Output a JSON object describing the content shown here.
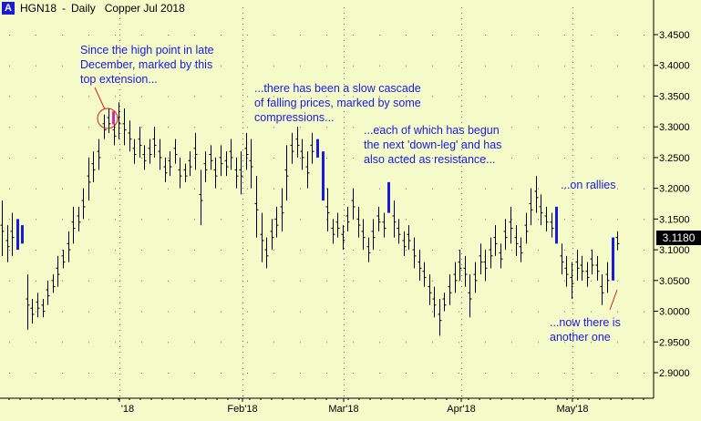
{
  "title": {
    "badge": "A",
    "symbol": "HGN18",
    "period": "Daily",
    "name": "Copper Jul 2018"
  },
  "last_price": "3.1180",
  "colors": {
    "background": "#f4fbc8",
    "bars": "#000000",
    "highlight": "#1a1adf",
    "top_bar": "#e020c0",
    "circle": "#d02020",
    "arrow": "#d02020",
    "annotation_text": "#1a1adf"
  },
  "annotations": [
    "Since the high point in late\nDecember, marked by this\ntop extension...",
    "...there has been a slow cascade\nof falling prices, marked by some\ncompressions...",
    "...each of which has begun\nthe next 'down-leg' and has\nalso acted as resistance...",
    "...on rallies",
    "...now there is\nanother one"
  ],
  "chart_data": {
    "type": "ohlc",
    "y_axis": {
      "range": [
        2.86,
        3.53
      ],
      "ticks": [
        "2.9000",
        "2.9500",
        "3.0000",
        "3.0500",
        "3.1000",
        "3.1500",
        "3.2000",
        "3.2500",
        "3.3000",
        "3.3500",
        "3.4000",
        "3.4500"
      ],
      "side": "right"
    },
    "x_axis": {
      "labels": [
        "'18",
        "Feb'18",
        "Mar'18",
        "Apr'18",
        "May'18"
      ]
    },
    "grid": "dotted",
    "bars": [
      {
        "hi": 3.18,
        "lo": 3.09,
        "hl": false
      },
      {
        "hi": 3.14,
        "lo": 3.08,
        "hl": false
      },
      {
        "hi": 3.16,
        "lo": 3.09,
        "hl": false
      },
      {
        "hi": 3.15,
        "lo": 3.1,
        "hl": true
      },
      {
        "hi": 3.14,
        "lo": 3.11,
        "hl": true
      },
      {
        "hi": 3.06,
        "lo": 2.97,
        "hl": false
      },
      {
        "hi": 3.02,
        "lo": 2.98,
        "hl": false
      },
      {
        "hi": 3.03,
        "lo": 2.99,
        "hl": false
      },
      {
        "hi": 3.02,
        "lo": 2.99,
        "hl": false
      },
      {
        "hi": 3.05,
        "lo": 3.01,
        "hl": false
      },
      {
        "hi": 3.06,
        "lo": 3.03,
        "hl": false
      },
      {
        "hi": 3.09,
        "lo": 3.04,
        "hl": false
      },
      {
        "hi": 3.1,
        "lo": 3.07,
        "hl": false
      },
      {
        "hi": 3.13,
        "lo": 3.08,
        "hl": false
      },
      {
        "hi": 3.17,
        "lo": 3.11,
        "hl": false
      },
      {
        "hi": 3.17,
        "lo": 3.13,
        "hl": false
      },
      {
        "hi": 3.2,
        "lo": 3.15,
        "hl": false
      },
      {
        "hi": 3.25,
        "lo": 3.18,
        "hl": false
      },
      {
        "hi": 3.26,
        "lo": 3.21,
        "hl": false
      },
      {
        "hi": 3.28,
        "lo": 3.23,
        "hl": false
      },
      {
        "hi": 3.32,
        "lo": 3.28,
        "hl": false
      },
      {
        "hi": 3.33,
        "lo": 3.29,
        "hl": false
      },
      {
        "hi": 3.31,
        "lo": 3.27,
        "hl": false
      },
      {
        "hi": 3.34,
        "lo": 3.28,
        "hl": false
      },
      {
        "hi": 3.33,
        "lo": 3.27,
        "hl": false
      },
      {
        "hi": 3.31,
        "lo": 3.26,
        "hl": false
      },
      {
        "hi": 3.28,
        "lo": 3.24,
        "hl": false
      },
      {
        "hi": 3.3,
        "lo": 3.25,
        "hl": false
      },
      {
        "hi": 3.27,
        "lo": 3.23,
        "hl": false
      },
      {
        "hi": 3.28,
        "lo": 3.24,
        "hl": false
      },
      {
        "hi": 3.3,
        "lo": 3.25,
        "hl": false
      },
      {
        "hi": 3.28,
        "lo": 3.23,
        "hl": false
      },
      {
        "hi": 3.25,
        "lo": 3.21,
        "hl": false
      },
      {
        "hi": 3.26,
        "lo": 3.22,
        "hl": false
      },
      {
        "hi": 3.28,
        "lo": 3.24,
        "hl": false
      },
      {
        "hi": 3.25,
        "lo": 3.2,
        "hl": false
      },
      {
        "hi": 3.24,
        "lo": 3.21,
        "hl": false
      },
      {
        "hi": 3.26,
        "lo": 3.22,
        "hl": false
      },
      {
        "hi": 3.29,
        "lo": 3.23,
        "hl": false
      },
      {
        "hi": 3.23,
        "lo": 3.14,
        "hl": false
      },
      {
        "hi": 3.26,
        "lo": 3.21,
        "hl": false
      },
      {
        "hi": 3.27,
        "lo": 3.23,
        "hl": false
      },
      {
        "hi": 3.25,
        "lo": 3.2,
        "hl": false
      },
      {
        "hi": 3.27,
        "lo": 3.22,
        "hl": false
      },
      {
        "hi": 3.26,
        "lo": 3.22,
        "hl": false
      },
      {
        "hi": 3.28,
        "lo": 3.23,
        "hl": false
      },
      {
        "hi": 3.25,
        "lo": 3.2,
        "hl": false
      },
      {
        "hi": 3.26,
        "lo": 3.19,
        "hl": false
      },
      {
        "hi": 3.29,
        "lo": 3.23,
        "hl": false
      },
      {
        "hi": 3.28,
        "lo": 3.2,
        "hl": false
      },
      {
        "hi": 3.22,
        "lo": 3.12,
        "hl": false
      },
      {
        "hi": 3.16,
        "lo": 3.08,
        "hl": false
      },
      {
        "hi": 3.12,
        "lo": 3.07,
        "hl": false
      },
      {
        "hi": 3.15,
        "lo": 3.1,
        "hl": false
      },
      {
        "hi": 3.17,
        "lo": 3.12,
        "hl": false
      },
      {
        "hi": 3.2,
        "lo": 3.13,
        "hl": false
      },
      {
        "hi": 3.27,
        "lo": 3.18,
        "hl": false
      },
      {
        "hi": 3.29,
        "lo": 3.24,
        "hl": false
      },
      {
        "hi": 3.3,
        "lo": 3.25,
        "hl": false
      },
      {
        "hi": 3.28,
        "lo": 3.23,
        "hl": false
      },
      {
        "hi": 3.26,
        "lo": 3.2,
        "hl": false
      },
      {
        "hi": 3.29,
        "lo": 3.24,
        "hl": false
      },
      {
        "hi": 3.28,
        "lo": 3.25,
        "hl": true
      },
      {
        "hi": 3.26,
        "lo": 3.18,
        "hl": true
      },
      {
        "hi": 3.2,
        "lo": 3.13,
        "hl": false
      },
      {
        "hi": 3.15,
        "lo": 3.11,
        "hl": false
      },
      {
        "hi": 3.16,
        "lo": 3.12,
        "hl": false
      },
      {
        "hi": 3.14,
        "lo": 3.1,
        "hl": false
      },
      {
        "hi": 3.17,
        "lo": 3.13,
        "hl": false
      },
      {
        "hi": 3.2,
        "lo": 3.15,
        "hl": false
      },
      {
        "hi": 3.17,
        "lo": 3.12,
        "hl": false
      },
      {
        "hi": 3.15,
        "lo": 3.1,
        "hl": false
      },
      {
        "hi": 3.12,
        "lo": 3.08,
        "hl": false
      },
      {
        "hi": 3.15,
        "lo": 3.1,
        "hl": false
      },
      {
        "hi": 3.17,
        "lo": 3.13,
        "hl": false
      },
      {
        "hi": 3.16,
        "lo": 3.12,
        "hl": false
      },
      {
        "hi": 3.21,
        "lo": 3.16,
        "hl": true
      },
      {
        "hi": 3.18,
        "lo": 3.12,
        "hl": false
      },
      {
        "hi": 3.15,
        "lo": 3.11,
        "hl": false
      },
      {
        "hi": 3.13,
        "lo": 3.09,
        "hl": false
      },
      {
        "hi": 3.14,
        "lo": 3.1,
        "hl": false
      },
      {
        "hi": 3.12,
        "lo": 3.07,
        "hl": false
      },
      {
        "hi": 3.1,
        "lo": 3.05,
        "hl": false
      },
      {
        "hi": 3.08,
        "lo": 3.04,
        "hl": false
      },
      {
        "hi": 3.06,
        "lo": 3.01,
        "hl": false
      },
      {
        "hi": 3.04,
        "lo": 2.99,
        "hl": false
      },
      {
        "hi": 3.02,
        "lo": 2.96,
        "hl": false
      },
      {
        "hi": 3.03,
        "lo": 3.0,
        "hl": false
      },
      {
        "hi": 3.06,
        "lo": 3.01,
        "hl": false
      },
      {
        "hi": 3.08,
        "lo": 3.03,
        "hl": false
      },
      {
        "hi": 3.1,
        "lo": 3.05,
        "hl": false
      },
      {
        "hi": 3.09,
        "lo": 3.04,
        "hl": false
      },
      {
        "hi": 3.06,
        "lo": 2.99,
        "hl": false
      },
      {
        "hi": 3.08,
        "lo": 3.03,
        "hl": false
      },
      {
        "hi": 3.11,
        "lo": 3.06,
        "hl": false
      },
      {
        "hi": 3.1,
        "lo": 3.05,
        "hl": false
      },
      {
        "hi": 3.12,
        "lo": 3.07,
        "hl": false
      },
      {
        "hi": 3.14,
        "lo": 3.09,
        "hl": false
      },
      {
        "hi": 3.11,
        "lo": 3.07,
        "hl": false
      },
      {
        "hi": 3.15,
        "lo": 3.1,
        "hl": false
      },
      {
        "hi": 3.17,
        "lo": 3.11,
        "hl": false
      },
      {
        "hi": 3.14,
        "lo": 3.09,
        "hl": false
      },
      {
        "hi": 3.12,
        "lo": 3.08,
        "hl": false
      },
      {
        "hi": 3.16,
        "lo": 3.11,
        "hl": false
      },
      {
        "hi": 3.2,
        "lo": 3.14,
        "hl": false
      },
      {
        "hi": 3.22,
        "lo": 3.16,
        "hl": false
      },
      {
        "hi": 3.19,
        "lo": 3.14,
        "hl": false
      },
      {
        "hi": 3.17,
        "lo": 3.13,
        "hl": false
      },
      {
        "hi": 3.16,
        "lo": 3.12,
        "hl": false
      },
      {
        "hi": 3.17,
        "lo": 3.11,
        "hl": true
      },
      {
        "hi": 3.11,
        "lo": 3.06,
        "hl": false
      },
      {
        "hi": 3.09,
        "lo": 3.04,
        "hl": false
      },
      {
        "hi": 3.08,
        "lo": 3.02,
        "hl": false
      },
      {
        "hi": 3.1,
        "lo": 3.05,
        "hl": false
      },
      {
        "hi": 3.09,
        "lo": 3.05,
        "hl": false
      },
      {
        "hi": 3.08,
        "lo": 3.04,
        "hl": false
      },
      {
        "hi": 3.1,
        "lo": 3.06,
        "hl": false
      },
      {
        "hi": 3.09,
        "lo": 3.05,
        "hl": false
      },
      {
        "hi": 3.06,
        "lo": 3.01,
        "hl": false
      },
      {
        "hi": 3.08,
        "lo": 3.03,
        "hl": false
      },
      {
        "hi": 3.12,
        "lo": 3.05,
        "hl": true
      },
      {
        "hi": 3.13,
        "lo": 3.1,
        "hl": false
      }
    ],
    "top_extension": {
      "bar_index": 22,
      "hi": 3.325,
      "lo": 3.31
    }
  }
}
